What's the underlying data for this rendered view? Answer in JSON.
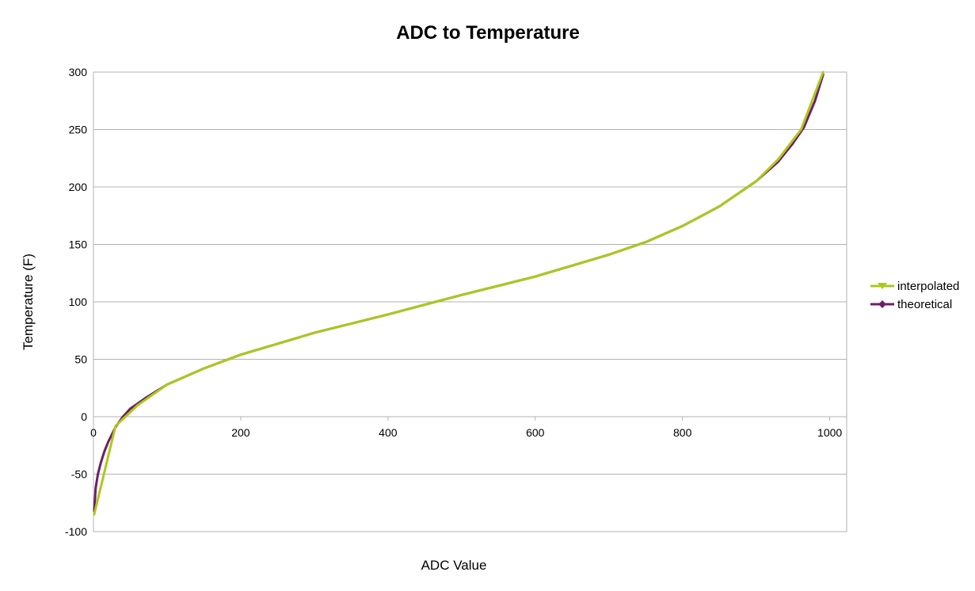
{
  "chart_data": {
    "type": "line",
    "title": "ADC to Temperature",
    "xlabel": "ADC Value",
    "ylabel": "Temperature (F)",
    "xlim": [
      0,
      1023
    ],
    "ylim": [
      -100,
      300
    ],
    "xticks": [
      0,
      200,
      400,
      600,
      800,
      1000
    ],
    "yticks": [
      -100,
      -50,
      0,
      50,
      100,
      150,
      200,
      250,
      300
    ],
    "grid": "horizontal",
    "legend_position": "right",
    "series": [
      {
        "name": "interpolated",
        "color": "#adc81a",
        "marker": "triangle-down",
        "points": [
          [
            1,
            -85
          ],
          [
            30,
            -8
          ],
          [
            60,
            10
          ],
          [
            100,
            28
          ],
          [
            150,
            42
          ],
          [
            200,
            54
          ],
          [
            300,
            73
          ],
          [
            400,
            89
          ],
          [
            500,
            106
          ],
          [
            600,
            122
          ],
          [
            700,
            141
          ],
          [
            750,
            152
          ],
          [
            800,
            166
          ],
          [
            850,
            183
          ],
          [
            900,
            205
          ],
          [
            930,
            224
          ],
          [
            961,
            250
          ],
          [
            991,
            300
          ]
        ]
      },
      {
        "name": "theoretical",
        "color": "#6e1f66",
        "marker": "diamond",
        "points": [
          [
            1,
            -82
          ],
          [
            3,
            -62
          ],
          [
            6,
            -50
          ],
          [
            10,
            -40
          ],
          [
            15,
            -30
          ],
          [
            20,
            -22
          ],
          [
            30,
            -9
          ],
          [
            40,
            0
          ],
          [
            50,
            7
          ],
          [
            70,
            16
          ],
          [
            100,
            28
          ],
          [
            150,
            42
          ],
          [
            200,
            54
          ],
          [
            300,
            73
          ],
          [
            400,
            89
          ],
          [
            500,
            106
          ],
          [
            600,
            122
          ],
          [
            700,
            141
          ],
          [
            750,
            152
          ],
          [
            800,
            166
          ],
          [
            850,
            183
          ],
          [
            900,
            205
          ],
          [
            930,
            222
          ],
          [
            950,
            238
          ],
          [
            965,
            252
          ],
          [
            980,
            275
          ],
          [
            991,
            298
          ]
        ]
      }
    ]
  }
}
